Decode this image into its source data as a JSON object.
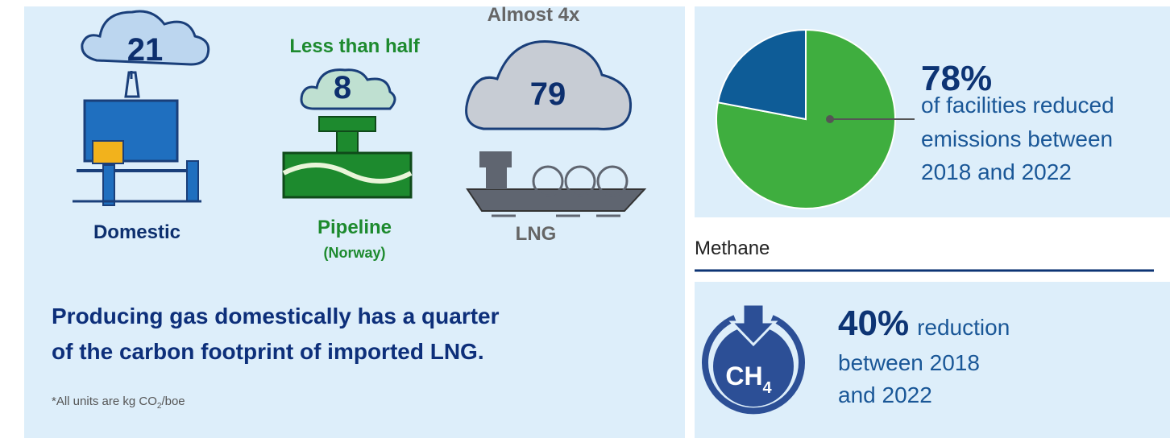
{
  "emissions": [
    {
      "value": 21,
      "label": "Domestic"
    },
    {
      "caption": "Less than half",
      "value": 8,
      "label": "Pipeline",
      "sublabel": "(Norway)"
    },
    {
      "caption": "Almost 4x",
      "value": 79,
      "label": "LNG"
    }
  ],
  "headline": [
    "Producing gas domestically has a quarter",
    "of the carbon footprint of imported LNG."
  ],
  "footnote": {
    "prefix": "*All units are kg CO",
    "sub": "2",
    "suffix": "/boe"
  },
  "chart_data": {
    "type": "pie",
    "values": [
      78,
      22
    ],
    "value_labels": [
      "78%",
      null
    ],
    "colors": [
      "#3fae3f",
      "#0e5c97"
    ]
  },
  "facilities_text": [
    "of facilities reduced",
    "emissions between",
    "2018 and 2022"
  ],
  "methane": {
    "heading": "Methane",
    "icon": {
      "text": "CH",
      "sub": "4"
    },
    "value_label": "40%",
    "text": [
      "reduction",
      "between 2018",
      "and 2022"
    ]
  }
}
